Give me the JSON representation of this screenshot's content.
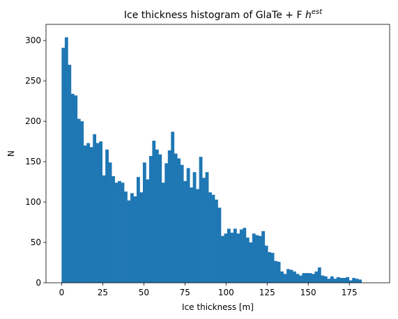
{
  "chart_data": {
    "type": "bar",
    "title_main": "Ice thickness histogram of GlaTe + F ",
    "title_symbol": "h",
    "title_superscript": "est",
    "xlabel": "Ice thickness [m]",
    "ylabel": "N",
    "xlim": [
      -9.5,
      199.5
    ],
    "ylim": [
      0,
      320
    ],
    "x_ticks": [
      0,
      25,
      50,
      75,
      100,
      125,
      150,
      175
    ],
    "y_ticks": [
      0,
      50,
      100,
      150,
      200,
      250,
      300
    ],
    "bin_width": 1.9,
    "bin_start": 0,
    "bar_color": "#1f77b4",
    "grid": false,
    "legend": false,
    "values": [
      291,
      304,
      270,
      234,
      232,
      203,
      200,
      170,
      173,
      168,
      184,
      173,
      175,
      133,
      165,
      149,
      132,
      124,
      126,
      124,
      113,
      102,
      111,
      107,
      131,
      112,
      149,
      128,
      157,
      176,
      165,
      159,
      124,
      148,
      164,
      187,
      160,
      154,
      146,
      126,
      142,
      118,
      137,
      116,
      156,
      130,
      137,
      112,
      109,
      103,
      93,
      58,
      61,
      67,
      62,
      67,
      61,
      66,
      68,
      56,
      50,
      61,
      59,
      58,
      64,
      46,
      38,
      37,
      27,
      26,
      14,
      11,
      17,
      16,
      14,
      11,
      9,
      12,
      12,
      12,
      11,
      14,
      19,
      9,
      8,
      5,
      8,
      5,
      7,
      6,
      6,
      7,
      3,
      6,
      5,
      4
    ]
  }
}
